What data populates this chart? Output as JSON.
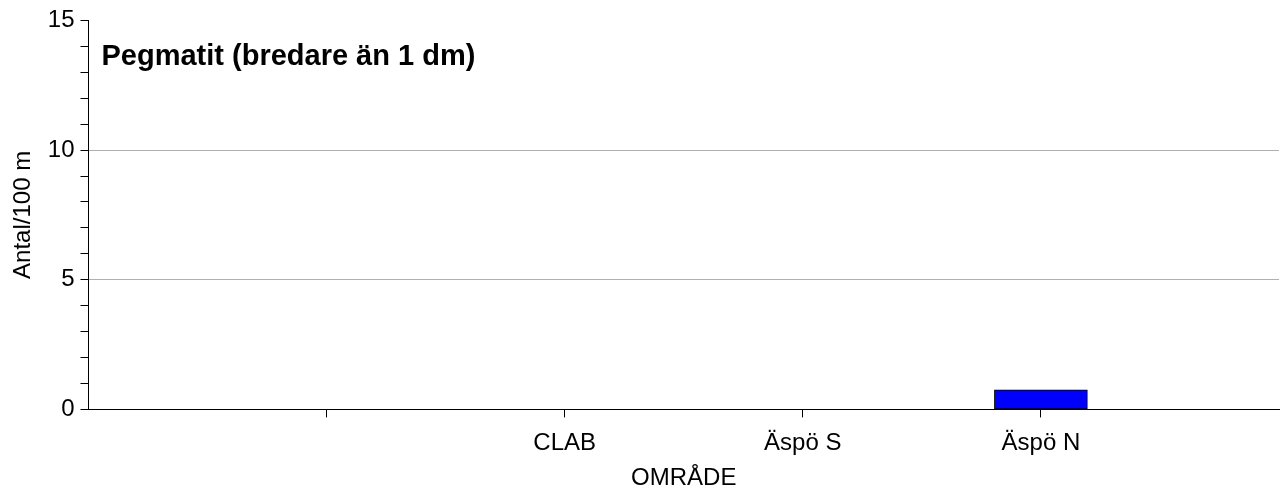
{
  "chart_data": {
    "type": "bar",
    "title": "Pegmatit (bredare än 1 dm)",
    "xlabel": "OMRÅDE",
    "ylabel": "Antal/100 m",
    "categories": [
      null,
      "CLAB",
      "Äspö S",
      "Äspö N"
    ],
    "values": [
      0,
      0,
      0,
      0.75
    ],
    "color": "#0000ff",
    "ylim": [
      0,
      15
    ],
    "yticks": [
      0,
      {
        "value": 1,
        "label": null
      },
      {
        "value": 2,
        "label": null
      },
      {
        "value": 3,
        "label": null
      },
      {
        "value": 4,
        "label": null
      },
      5,
      {
        "value": 6,
        "label": null
      },
      {
        "value": 7,
        "label": null
      },
      {
        "value": 8,
        "label": null
      },
      {
        "value": 9,
        "label": null
      },
      10,
      {
        "value": 11,
        "label": null
      },
      {
        "value": 12,
        "label": null
      },
      {
        "value": 13,
        "label": null
      },
      {
        "value": 14,
        "label": null
      },
      15
    ],
    "grid": "y",
    "legend": false
  }
}
